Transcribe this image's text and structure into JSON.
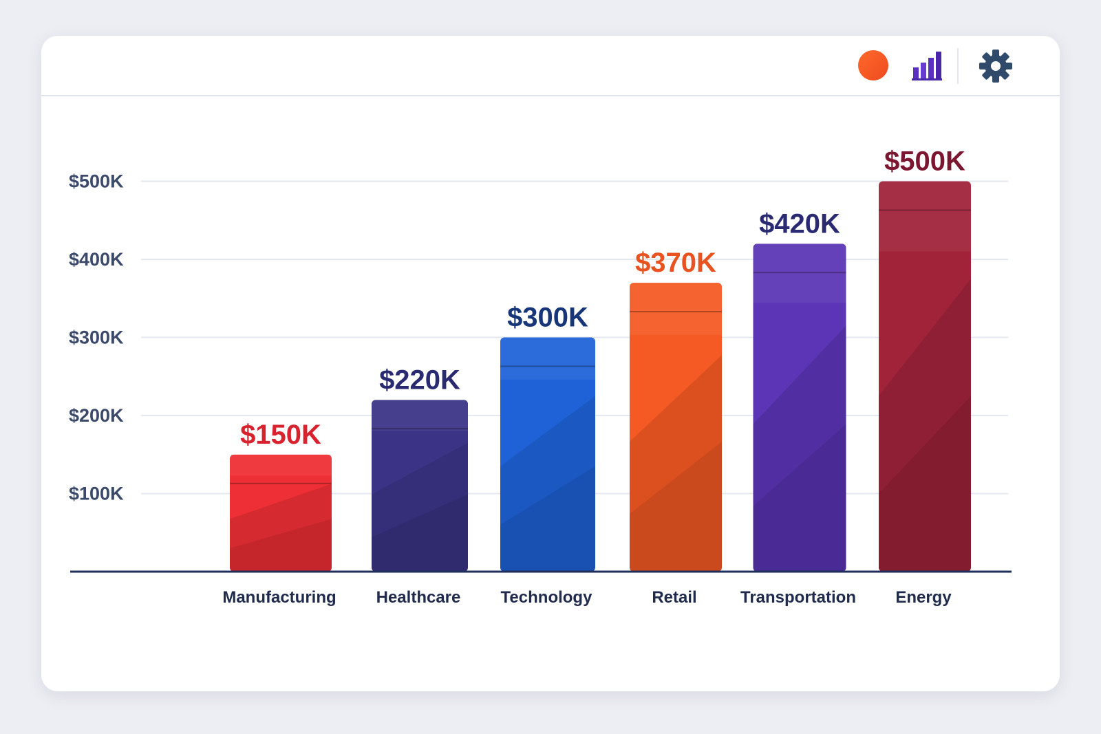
{
  "toolbar": {
    "icons": [
      "orange-dot-icon",
      "bar-chart-icon",
      "gear-icon"
    ],
    "dot_color": "#f4511e",
    "chart_icon_color": "#5b2fc0",
    "gear_color": "#2f4a6b"
  },
  "chart_data": {
    "type": "bar",
    "title": "",
    "xlabel": "",
    "ylabel": "",
    "categories": [
      "Manufacturing",
      "Healthcare",
      "Technology",
      "Retail",
      "Transportation",
      "Energy"
    ],
    "values": [
      150,
      220,
      300,
      370,
      420,
      500
    ],
    "value_labels": [
      "$150K",
      "$220K",
      "$300K",
      "$370K",
      "$420K",
      "$500K"
    ],
    "bar_colors": [
      "#ee2f35",
      "#3b3486",
      "#1f62d8",
      "#f55a24",
      "#5b35b5",
      "#a0233a"
    ],
    "label_colors": [
      "#d8232f",
      "#2a2a72",
      "#17367a",
      "#e8531f",
      "#2a2a72",
      "#7c1630"
    ],
    "y_ticks": [
      100,
      200,
      300,
      400,
      500
    ],
    "y_tick_labels": [
      "$100K",
      "$200K",
      "$300K",
      "$400K",
      "$500K"
    ],
    "ylim": [
      0,
      500
    ],
    "grid": true,
    "legend": "none"
  }
}
